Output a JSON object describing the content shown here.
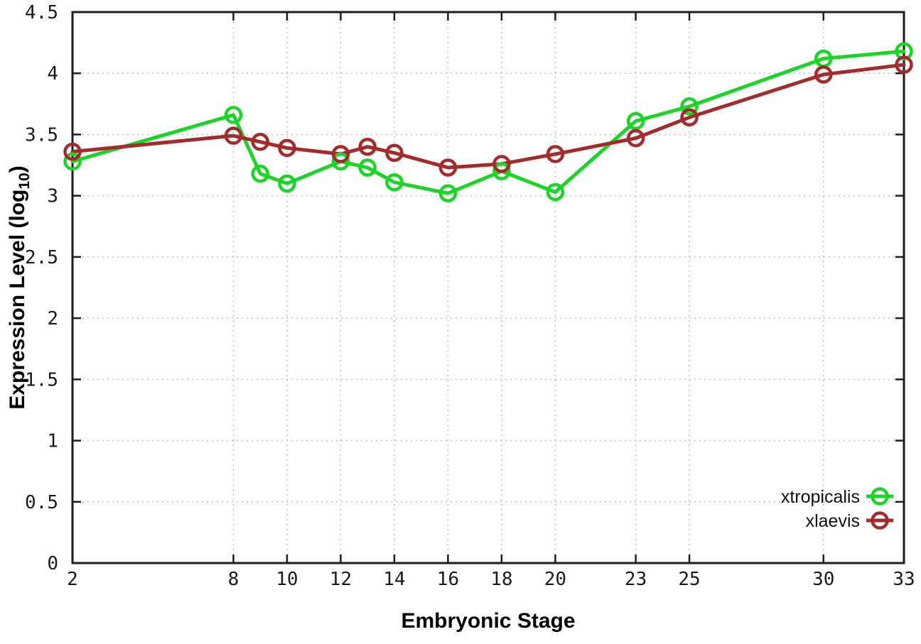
{
  "chart_data": {
    "type": "line",
    "title": "",
    "xlabel": "Embryonic Stage",
    "ylabel": {
      "text": "Expression Level (log10)",
      "main": "Expression Level (log",
      "sub": "10",
      "close": ")"
    },
    "x": [
      2,
      8,
      9,
      10,
      12,
      13,
      14,
      16,
      18,
      20,
      23,
      25,
      30,
      33
    ],
    "series": [
      {
        "name": "xtropicalis",
        "color": "#1bd427",
        "values": [
          3.28,
          3.66,
          3.18,
          3.1,
          3.28,
          3.23,
          3.11,
          3.02,
          3.2,
          3.03,
          3.61,
          3.73,
          4.12,
          4.18
        ]
      },
      {
        "name": "xlaevis",
        "color": "#a32b2b",
        "values": [
          3.36,
          3.49,
          3.44,
          3.39,
          3.34,
          3.4,
          3.35,
          3.23,
          3.26,
          3.34,
          3.47,
          3.64,
          3.99,
          4.07
        ]
      }
    ],
    "xlim": [
      2,
      33
    ],
    "ylim": [
      0,
      4.5
    ],
    "xticks": [
      2,
      8,
      10,
      12,
      14,
      16,
      18,
      20,
      23,
      25,
      30,
      33
    ],
    "xtick_labels": [
      "2",
      "8",
      "10",
      "12",
      "14",
      "16",
      "18",
      "20",
      "23",
      "25",
      "30",
      "33"
    ],
    "yticks": [
      0,
      0.5,
      1,
      1.5,
      2,
      2.5,
      3,
      3.5,
      4,
      4.5
    ],
    "ytick_labels": [
      "0",
      "0.5",
      "1",
      "1.5",
      "2",
      "2.5",
      "3",
      "3.5",
      "4",
      "4.5"
    ],
    "grid": true,
    "legend_position": "bottom-right",
    "style": {
      "background": "#ffffff",
      "border_color": "#1c1c1c",
      "grid_color": "#bdbdbd",
      "tick_color": "#1c1c1c",
      "line_width": 5,
      "marker_radius": 10.5,
      "marker_stroke": 4.5
    }
  }
}
